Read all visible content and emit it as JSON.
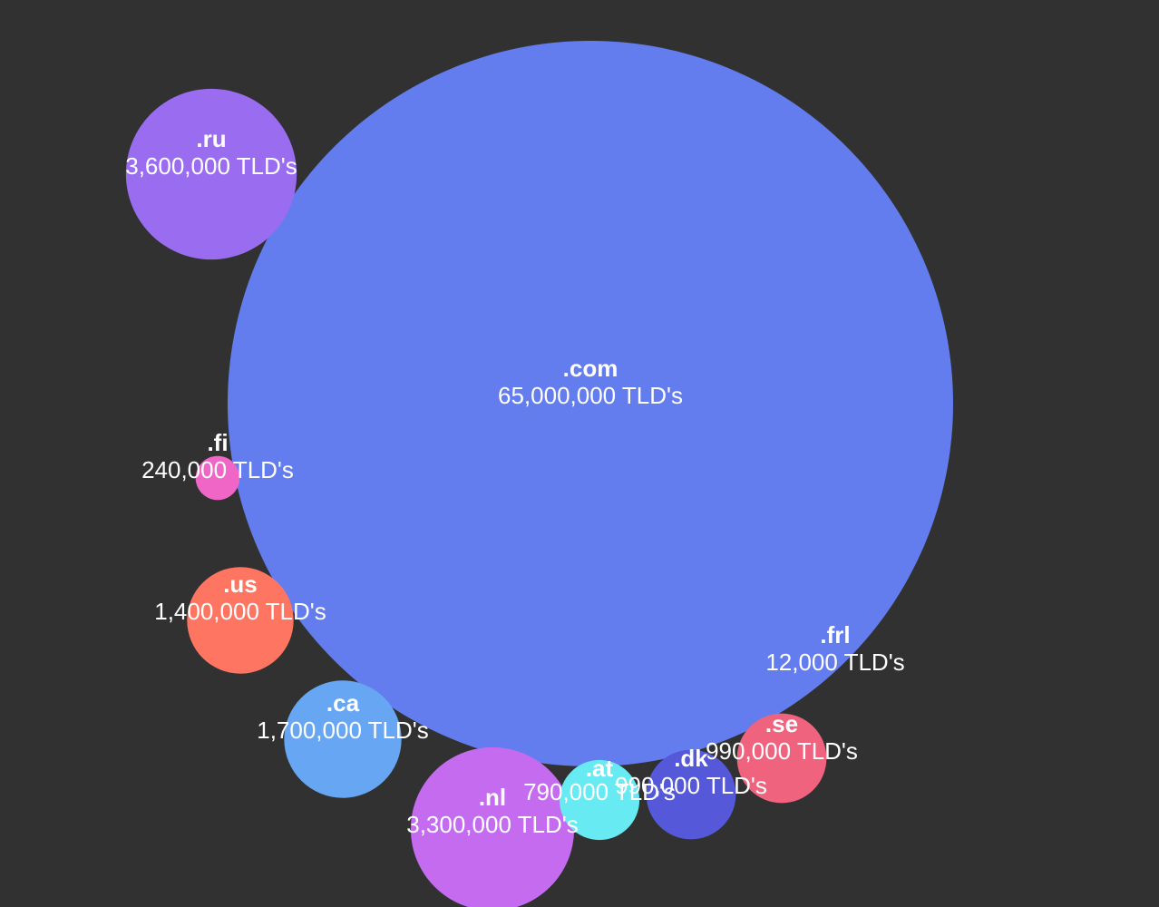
{
  "chart_data": {
    "type": "bubble",
    "value_suffix": " TLD's",
    "series": [
      {
        "name": ".com",
        "value_label": "65,000,000",
        "value": 65000000,
        "color": "#637dee"
      },
      {
        "name": ".ru",
        "value_label": "3,600,000",
        "value": 3600000,
        "color": "#9a6cf0"
      },
      {
        "name": ".nl",
        "value_label": "3,300,000",
        "value": 3300000,
        "color": "#c46bef"
      },
      {
        "name": ".ca",
        "value_label": "1,700,000",
        "value": 1700000,
        "color": "#66a6f2"
      },
      {
        "name": ".us",
        "value_label": "1,400,000",
        "value": 1400000,
        "color": "#fe7561"
      },
      {
        "name": ".se",
        "value_label": "990,000",
        "value": 990000,
        "color": "#f0637e"
      },
      {
        "name": ".dk",
        "value_label": "990,000",
        "value": 990000,
        "color": "#5558d8"
      },
      {
        "name": ".at",
        "value_label": "790,000",
        "value": 790000,
        "color": "#67eaf2"
      },
      {
        "name": ".fi",
        "value_label": "240,000",
        "value": 240000,
        "color": "#ef66c7"
      },
      {
        "name": ".frl",
        "value_label": "12,000",
        "value": 12000,
        "color": "#637dee"
      }
    ]
  }
}
